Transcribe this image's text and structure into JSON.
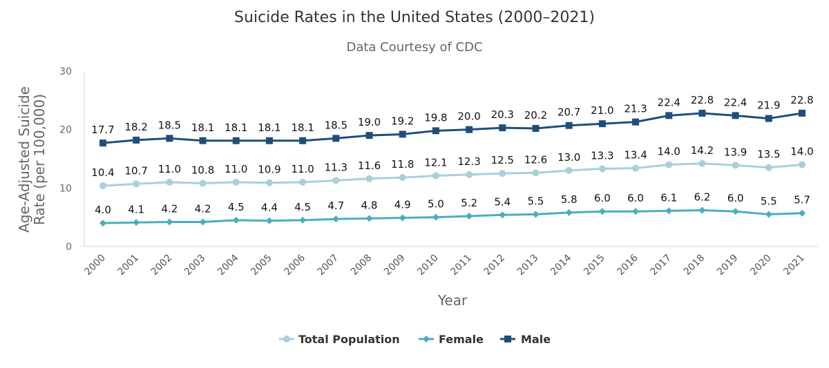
{
  "chart_data": {
    "type": "line",
    "title": "Suicide Rates in the United States (2000–2021)",
    "subtitle": "Data Courtesy of CDC",
    "xlabel": "Year",
    "ylabel_lines": [
      "Age-Adjusted Suicide",
      "Rate (per 100,000)"
    ],
    "ylim": [
      0,
      30
    ],
    "yticks": [
      "0",
      "10",
      "20",
      "30"
    ],
    "categories": [
      "2000",
      "2001",
      "2002",
      "2003",
      "2004",
      "2005",
      "2006",
      "2007",
      "2008",
      "2009",
      "2010",
      "2011",
      "2012",
      "2013",
      "2014",
      "2015",
      "2016",
      "2017",
      "2018",
      "2019",
      "2020",
      "2021"
    ],
    "series": [
      {
        "name": "Total Population",
        "color": "#a8cfdf",
        "marker": "circle",
        "values": [
          10.4,
          10.7,
          11.0,
          10.8,
          11.0,
          10.9,
          11.0,
          11.3,
          11.6,
          11.8,
          12.1,
          12.3,
          12.5,
          12.6,
          13.0,
          13.3,
          13.4,
          14.0,
          14.2,
          13.9,
          13.5,
          14.0
        ]
      },
      {
        "name": "Female",
        "color": "#4aaebf",
        "marker": "diamond",
        "values": [
          4.0,
          4.1,
          4.2,
          4.2,
          4.5,
          4.4,
          4.5,
          4.7,
          4.8,
          4.9,
          5.0,
          5.2,
          5.4,
          5.5,
          5.8,
          6.0,
          6.0,
          6.1,
          6.2,
          6.0,
          5.5,
          5.7
        ]
      },
      {
        "name": "Male",
        "color": "#1f4e7a",
        "marker": "square",
        "values": [
          17.7,
          18.2,
          18.5,
          18.1,
          18.1,
          18.1,
          18.1,
          18.5,
          19.0,
          19.2,
          19.8,
          20.0,
          20.3,
          20.2,
          20.7,
          21.0,
          21.3,
          22.4,
          22.8,
          22.4,
          21.9,
          22.8
        ]
      }
    ],
    "legend_position": "bottom-center",
    "grid": false
  }
}
